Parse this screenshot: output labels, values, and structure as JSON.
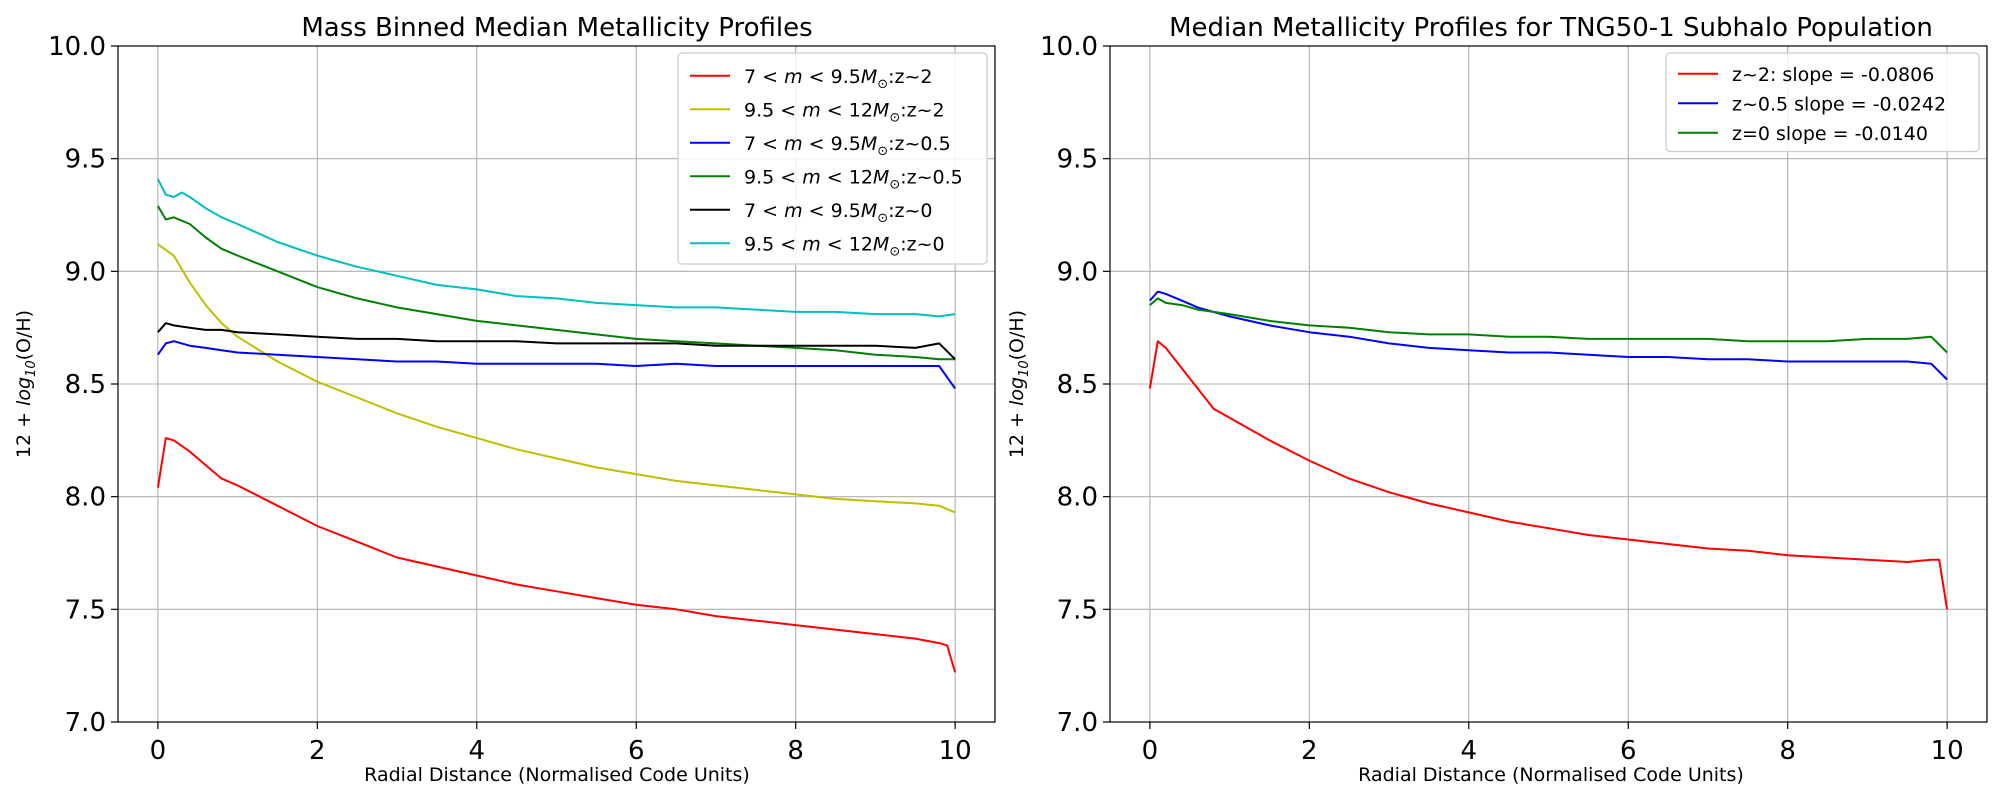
{
  "chart_data": [
    {
      "type": "line",
      "title": "Mass Binned Median Metallicity Profiles",
      "xlabel": "Radial Distance (Normalised Code Units)",
      "ylabel": "12 + log10(O/H)",
      "xlim": [
        -0.5,
        10.5
      ],
      "ylim": [
        7.0,
        10.0
      ],
      "xticks": [
        "0",
        "2",
        "4",
        "6",
        "8",
        "10"
      ],
      "yticks": [
        "7.0",
        "7.5",
        "8.0",
        "8.5",
        "9.0",
        "9.5",
        "10.0"
      ],
      "grid": true,
      "legend_position": "top-right",
      "series": [
        {
          "name": "7 < m < 9.5M⊙:z~2",
          "color": "#ff0000",
          "x": [
            0,
            0.1,
            0.2,
            0.4,
            0.6,
            0.8,
            1,
            1.5,
            2,
            2.5,
            3,
            3.5,
            4,
            4.5,
            5,
            5.5,
            6,
            6.5,
            7,
            7.5,
            8,
            8.5,
            9,
            9.5,
            9.8,
            9.9,
            10
          ],
          "y": [
            8.04,
            8.26,
            8.25,
            8.2,
            8.14,
            8.08,
            8.05,
            7.96,
            7.87,
            7.8,
            7.73,
            7.69,
            7.65,
            7.61,
            7.58,
            7.55,
            7.52,
            7.5,
            7.47,
            7.45,
            7.43,
            7.41,
            7.39,
            7.37,
            7.35,
            7.34,
            7.22
          ]
        },
        {
          "name": "9.5 < m < 12M⊙:z~2",
          "color": "#bfbf00",
          "x": [
            0,
            0.2,
            0.4,
            0.6,
            0.8,
            1,
            1.5,
            2,
            2.5,
            3,
            3.5,
            4,
            4.5,
            5,
            5.5,
            6,
            6.5,
            7,
            7.5,
            8,
            8.5,
            9,
            9.5,
            9.8,
            10
          ],
          "y": [
            9.12,
            9.07,
            8.95,
            8.85,
            8.77,
            8.71,
            8.6,
            8.51,
            8.44,
            8.37,
            8.31,
            8.26,
            8.21,
            8.17,
            8.13,
            8.1,
            8.07,
            8.05,
            8.03,
            8.01,
            7.99,
            7.98,
            7.97,
            7.96,
            7.93
          ]
        },
        {
          "name": "7 < m < 9.5M⊙:z~0.5",
          "color": "#0000ff",
          "x": [
            0,
            0.1,
            0.2,
            0.4,
            0.6,
            0.8,
            1,
            1.5,
            2,
            2.5,
            3,
            3.5,
            4,
            4.5,
            5,
            5.5,
            6,
            6.5,
            7,
            7.5,
            8,
            8.5,
            9,
            9.5,
            9.8,
            10
          ],
          "y": [
            8.63,
            8.68,
            8.69,
            8.67,
            8.66,
            8.65,
            8.64,
            8.63,
            8.62,
            8.61,
            8.6,
            8.6,
            8.59,
            8.59,
            8.59,
            8.59,
            8.58,
            8.59,
            8.58,
            8.58,
            8.58,
            8.58,
            8.58,
            8.58,
            8.58,
            8.48
          ]
        },
        {
          "name": "9.5 < m < 12M⊙:z~0.5",
          "color": "#008000",
          "x": [
            0,
            0.1,
            0.2,
            0.4,
            0.6,
            0.8,
            1,
            1.5,
            2,
            2.5,
            3,
            3.5,
            4,
            4.5,
            5,
            5.5,
            6,
            6.5,
            7,
            7.5,
            8,
            8.5,
            9,
            9.5,
            9.8,
            10
          ],
          "y": [
            9.29,
            9.23,
            9.24,
            9.21,
            9.15,
            9.1,
            9.07,
            9.0,
            8.93,
            8.88,
            8.84,
            8.81,
            8.78,
            8.76,
            8.74,
            8.72,
            8.7,
            8.69,
            8.68,
            8.67,
            8.66,
            8.65,
            8.63,
            8.62,
            8.61,
            8.61
          ]
        },
        {
          "name": "7 < m < 9.5M⊙:z~0",
          "color": "#000000",
          "x": [
            0,
            0.1,
            0.2,
            0.4,
            0.6,
            0.8,
            1,
            1.5,
            2,
            2.5,
            3,
            3.5,
            4,
            4.5,
            5,
            5.5,
            6,
            6.5,
            7,
            7.5,
            8,
            8.5,
            9,
            9.5,
            9.8,
            10
          ],
          "y": [
            8.73,
            8.77,
            8.76,
            8.75,
            8.74,
            8.74,
            8.73,
            8.72,
            8.71,
            8.7,
            8.7,
            8.69,
            8.69,
            8.69,
            8.68,
            8.68,
            8.68,
            8.68,
            8.67,
            8.67,
            8.67,
            8.67,
            8.67,
            8.66,
            8.68,
            8.61
          ]
        },
        {
          "name": "9.5 < m < 12M⊙:z~0",
          "color": "#00bfbf",
          "x": [
            0,
            0.1,
            0.2,
            0.3,
            0.4,
            0.6,
            0.8,
            1,
            1.5,
            2,
            2.5,
            3,
            3.5,
            4,
            4.5,
            5,
            5.5,
            6,
            6.5,
            7,
            7.5,
            8,
            8.5,
            9,
            9.5,
            9.8,
            10
          ],
          "y": [
            9.41,
            9.34,
            9.33,
            9.35,
            9.33,
            9.28,
            9.24,
            9.21,
            9.13,
            9.07,
            9.02,
            8.98,
            8.94,
            8.92,
            8.89,
            8.88,
            8.86,
            8.85,
            8.84,
            8.84,
            8.83,
            8.82,
            8.82,
            8.81,
            8.81,
            8.8,
            8.81
          ]
        }
      ]
    },
    {
      "type": "line",
      "title": "Median Metallicity Profiles for TNG50-1 Subhalo Population",
      "xlabel": "Radial Distance (Normalised Code Units)",
      "ylabel": "12 + log10(O/H)",
      "xlim": [
        -0.5,
        10.5
      ],
      "ylim": [
        7.0,
        10.0
      ],
      "xticks": [
        "0",
        "2",
        "4",
        "6",
        "8",
        "10"
      ],
      "yticks": [
        "7.0",
        "7.5",
        "8.0",
        "8.5",
        "9.0",
        "9.5",
        "10.0"
      ],
      "grid": true,
      "legend_position": "top-right",
      "series": [
        {
          "name": "z~2: slope = -0.0806",
          "color": "#ff0000",
          "x": [
            0,
            0.1,
            0.2,
            0.4,
            0.6,
            0.8,
            1,
            1.5,
            2,
            2.5,
            3,
            3.5,
            4,
            4.5,
            5,
            5.5,
            6,
            6.5,
            7,
            7.5,
            8,
            8.5,
            9,
            9.5,
            9.8,
            9.9,
            10
          ],
          "y": [
            8.48,
            8.69,
            8.66,
            8.57,
            8.48,
            8.39,
            8.35,
            8.25,
            8.16,
            8.08,
            8.02,
            7.97,
            7.93,
            7.89,
            7.86,
            7.83,
            7.81,
            7.79,
            7.77,
            7.76,
            7.74,
            7.73,
            7.72,
            7.71,
            7.72,
            7.72,
            7.5
          ]
        },
        {
          "name": "z~0.5 slope = -0.0242",
          "color": "#0000ff",
          "x": [
            0,
            0.1,
            0.2,
            0.4,
            0.6,
            0.8,
            1,
            1.5,
            2,
            2.5,
            3,
            3.5,
            4,
            4.5,
            5,
            5.5,
            6,
            6.5,
            7,
            7.5,
            8,
            8.5,
            9,
            9.5,
            9.8,
            10
          ],
          "y": [
            8.87,
            8.91,
            8.9,
            8.87,
            8.84,
            8.82,
            8.8,
            8.76,
            8.73,
            8.71,
            8.68,
            8.66,
            8.65,
            8.64,
            8.64,
            8.63,
            8.62,
            8.62,
            8.61,
            8.61,
            8.6,
            8.6,
            8.6,
            8.6,
            8.59,
            8.52
          ]
        },
        {
          "name": "z=0 slope = -0.0140",
          "color": "#008000",
          "x": [
            0,
            0.1,
            0.2,
            0.4,
            0.6,
            0.8,
            1,
            1.5,
            2,
            2.5,
            3,
            3.5,
            4,
            4.5,
            5,
            5.5,
            6,
            6.5,
            7,
            7.5,
            8,
            8.5,
            9,
            9.5,
            9.8,
            10
          ],
          "y": [
            8.85,
            8.88,
            8.86,
            8.85,
            8.83,
            8.82,
            8.81,
            8.78,
            8.76,
            8.75,
            8.73,
            8.72,
            8.72,
            8.71,
            8.71,
            8.7,
            8.7,
            8.7,
            8.7,
            8.69,
            8.69,
            8.69,
            8.7,
            8.7,
            8.71,
            8.64
          ]
        }
      ]
    }
  ]
}
